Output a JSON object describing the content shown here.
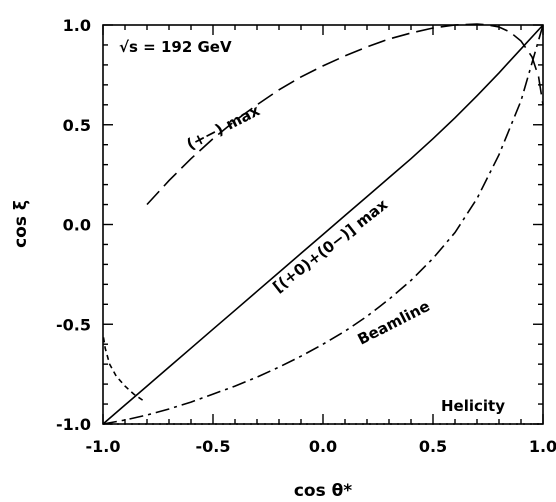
{
  "chart_data": {
    "type": "line",
    "title": "",
    "xlabel": "cos θ*",
    "ylabel": "cos ξ",
    "xlim": [
      -1.0,
      1.0
    ],
    "ylim": [
      -1.0,
      1.0
    ],
    "xticks": [
      "-1.0",
      "-0.5",
      "0.0",
      "0.5",
      "1.0"
    ],
    "yticks": [
      "-1.0",
      "-0.5",
      "0.0",
      "0.5",
      "1.0"
    ],
    "grid": false,
    "annotations": {
      "energy": "√s = 192 GeV",
      "pm_max": "(+−) max",
      "mixed_max": "[(+0)+(0−)] max",
      "beamline": "Beamline",
      "helicity": "Helicity"
    },
    "series": [
      {
        "name": "[(+0)+(0−)] max",
        "style": "solid",
        "x": [
          -1.0,
          -0.9,
          -0.8,
          -0.7,
          -0.6,
          -0.5,
          -0.4,
          -0.3,
          -0.2,
          -0.1,
          0.0,
          0.1,
          0.2,
          0.3,
          0.4,
          0.5,
          0.6,
          0.7,
          0.8,
          0.9,
          1.0
        ],
        "y": [
          -1.0,
          -0.905,
          -0.81,
          -0.715,
          -0.62,
          -0.525,
          -0.43,
          -0.335,
          -0.24,
          -0.145,
          -0.05,
          0.045,
          0.14,
          0.235,
          0.33,
          0.43,
          0.535,
          0.645,
          0.76,
          0.88,
          1.0
        ]
      },
      {
        "name": "Beamline",
        "style": "dashdot",
        "x": [
          -1.0,
          -0.9,
          -0.8,
          -0.7,
          -0.6,
          -0.5,
          -0.4,
          -0.3,
          -0.2,
          -0.1,
          0.0,
          0.1,
          0.2,
          0.3,
          0.4,
          0.5,
          0.6,
          0.7,
          0.8,
          0.9,
          1.0
        ],
        "y": [
          -1.0,
          -0.98,
          -0.955,
          -0.925,
          -0.89,
          -0.85,
          -0.81,
          -0.765,
          -0.715,
          -0.66,
          -0.6,
          -0.535,
          -0.46,
          -0.375,
          -0.28,
          -0.17,
          -0.04,
          0.13,
          0.35,
          0.62,
          1.0
        ]
      },
      {
        "name": "(+−) max",
        "style": "dash",
        "x": [
          -0.8,
          -0.7,
          -0.6,
          -0.5,
          -0.4,
          -0.3,
          -0.2,
          -0.1,
          0.0,
          0.1,
          0.2,
          0.3,
          0.4,
          0.5,
          0.6,
          0.7,
          0.75,
          0.8,
          0.85,
          0.9,
          0.95,
          0.98,
          1.0
        ],
        "y": [
          0.1,
          0.22,
          0.33,
          0.43,
          0.52,
          0.6,
          0.675,
          0.74,
          0.795,
          0.845,
          0.89,
          0.93,
          0.96,
          0.985,
          1.0,
          1.005,
          1.0,
          0.99,
          0.965,
          0.92,
          0.84,
          0.74,
          0.6
        ]
      },
      {
        "name": "",
        "style": "shortdash",
        "x": [
          -0.82,
          -0.86,
          -0.9,
          -0.94,
          -0.97,
          -0.99,
          -1.0
        ],
        "y": [
          -0.88,
          -0.85,
          -0.81,
          -0.76,
          -0.7,
          -0.62,
          -0.55
        ]
      },
      {
        "name": "Helicity",
        "style": "dot",
        "x": [
          -1.0,
          1.0
        ],
        "y": [
          -1.0,
          -1.0
        ]
      }
    ]
  }
}
